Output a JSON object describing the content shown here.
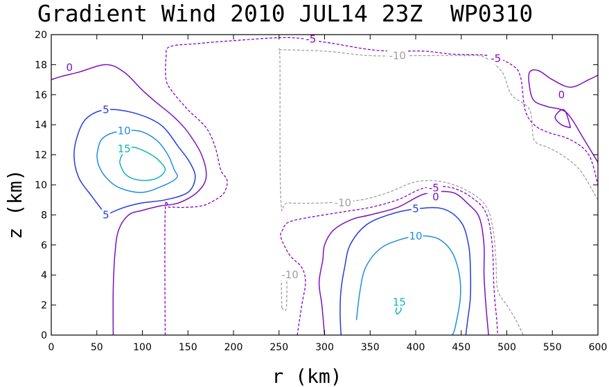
{
  "chart_data": {
    "type": "contour",
    "title": "Gradient Wind 2010 JUL14 23Z  WP0310",
    "xlabel": "r (km)",
    "ylabel": "z (km)",
    "xlim": [
      0,
      600
    ],
    "ylim": [
      0,
      20
    ],
    "x_ticks": [
      "0",
      "50",
      "100",
      "150",
      "200",
      "250",
      "300",
      "350",
      "400",
      "450",
      "500",
      "550",
      "600"
    ],
    "y_ticks": [
      "0",
      "2",
      "4",
      "6",
      "8",
      "10",
      "12",
      "14",
      "16",
      "18",
      "20"
    ],
    "grid": false,
    "level_colors": {
      "-10": "#a0a0a0",
      "-5": "#8a00c8",
      "0": "#7a10c0",
      "5": "#1e3ce0",
      "10": "#1e8ee0",
      "15": "#10b4b4"
    },
    "contours": [
      {
        "level": -10,
        "dashed": true,
        "points": [
          [
            250,
            19.0
          ],
          [
            251,
            18.0
          ],
          [
            252,
            9.0
          ],
          [
            260,
            8.8
          ],
          [
            300,
            8.8
          ],
          [
            340,
            9.0
          ],
          [
            370,
            9.5
          ],
          [
            400,
            10.2
          ],
          [
            430,
            10.2
          ],
          [
            460,
            9.5
          ],
          [
            478,
            8.5
          ],
          [
            485,
            7.0
          ],
          [
            488,
            5.0
          ],
          [
            490,
            3.0
          ],
          [
            500,
            2.0
          ],
          [
            510,
            1.0
          ],
          [
            518,
            0.0
          ]
        ]
      },
      {
        "level": -10,
        "dashed": true,
        "points": [
          [
            253,
            1.8
          ],
          [
            253,
            4.0
          ],
          [
            258,
            4.0
          ],
          [
            258,
            1.8
          ],
          [
            253,
            1.8
          ]
        ]
      },
      {
        "level": -10,
        "dashed": true,
        "points": [
          [
            250,
            19.0
          ],
          [
            300,
            18.9
          ],
          [
            350,
            18.6
          ],
          [
            400,
            18.6
          ],
          [
            450,
            18.6
          ],
          [
            475,
            18.5
          ],
          [
            495,
            17.5
          ],
          [
            505,
            16.0
          ],
          [
            525,
            15.0
          ],
          [
            530,
            13.0
          ],
          [
            545,
            12.5
          ],
          [
            560,
            12.0
          ],
          [
            580,
            11.0
          ],
          [
            600,
            9.0
          ]
        ]
      },
      {
        "level": -5,
        "dashed": true,
        "points": [
          [
            125,
            0.0
          ],
          [
            125,
            8.2
          ],
          [
            130,
            8.5
          ],
          [
            145,
            8.5
          ],
          [
            165,
            8.6
          ],
          [
            180,
            9.0
          ],
          [
            190,
            9.5
          ],
          [
            193,
            10.3
          ],
          [
            186,
            11.0
          ],
          [
            180,
            12.5
          ],
          [
            170,
            13.8
          ],
          [
            150,
            15.0
          ],
          [
            133,
            16.2
          ],
          [
            126,
            17.0
          ],
          [
            126,
            18.5
          ],
          [
            130,
            19.2
          ],
          [
            160,
            19.4
          ],
          [
            200,
            19.6
          ],
          [
            260,
            19.8
          ],
          [
            300,
            19.5
          ],
          [
            350,
            19.0
          ],
          [
            380,
            18.9
          ],
          [
            410,
            18.9
          ],
          [
            440,
            18.7
          ],
          [
            480,
            18.6
          ],
          [
            505,
            18.0
          ],
          [
            515,
            17.2
          ],
          [
            520,
            15.0
          ],
          [
            530,
            14.0
          ],
          [
            545,
            13.5
          ],
          [
            570,
            13.0
          ],
          [
            590,
            12.0
          ],
          [
            600,
            10.0
          ]
        ]
      },
      {
        "level": -5,
        "dashed": true,
        "points": [
          [
            270,
            0.0
          ],
          [
            275,
            2.0
          ],
          [
            279,
            3.5
          ],
          [
            275,
            4.5
          ],
          [
            262,
            5.3
          ],
          [
            252,
            6.5
          ],
          [
            254,
            7.0
          ],
          [
            260,
            7.5
          ],
          [
            280,
            7.8
          ],
          [
            320,
            8.2
          ],
          [
            350,
            8.5
          ],
          [
            380,
            9.0
          ],
          [
            410,
            9.8
          ],
          [
            440,
            9.8
          ],
          [
            465,
            9.0
          ],
          [
            478,
            8.0
          ],
          [
            484,
            6.0
          ],
          [
            486,
            3.0
          ],
          [
            489,
            1.0
          ],
          [
            490,
            0.0
          ]
        ]
      },
      {
        "level": 0,
        "dashed": false,
        "points": [
          [
            68,
            0.0
          ],
          [
            68,
            3.0
          ],
          [
            70,
            5.5
          ],
          [
            74,
            7.0
          ],
          [
            85,
            8.0
          ],
          [
            100,
            8.3
          ],
          [
            120,
            8.6
          ],
          [
            140,
            8.8
          ],
          [
            160,
            9.5
          ],
          [
            170,
            10.5
          ],
          [
            165,
            12.0
          ],
          [
            150,
            13.5
          ],
          [
            135,
            14.5
          ],
          [
            115,
            15.5
          ],
          [
            100,
            16.3
          ],
          [
            80,
            17.5
          ],
          [
            60,
            18.0
          ],
          [
            30,
            17.5
          ],
          [
            10,
            17.2
          ],
          [
            0,
            17.0
          ]
        ]
      },
      {
        "level": 0,
        "dashed": false,
        "points": [
          [
            300,
            0.0
          ],
          [
            297,
            2.0
          ],
          [
            294,
            3.5
          ],
          [
            298,
            5.0
          ],
          [
            300,
            6.0
          ],
          [
            310,
            7.0
          ],
          [
            330,
            7.7
          ],
          [
            350,
            8.0
          ],
          [
            380,
            8.5
          ],
          [
            410,
            9.4
          ],
          [
            440,
            9.5
          ],
          [
            458,
            8.7
          ],
          [
            470,
            7.8
          ],
          [
            475,
            6.0
          ],
          [
            475,
            4.0
          ],
          [
            477,
            2.0
          ],
          [
            480,
            0.0
          ]
        ]
      },
      {
        "level": 0,
        "dashed": false,
        "points": [
          [
            600,
            11.5
          ],
          [
            585,
            13.0
          ],
          [
            570,
            14.5
          ],
          [
            560,
            15.0
          ],
          [
            545,
            15.2
          ],
          [
            530,
            15.6
          ],
          [
            525,
            16.5
          ],
          [
            525,
            17.5
          ],
          [
            535,
            17.6
          ],
          [
            550,
            17.0
          ],
          [
            570,
            16.5
          ],
          [
            590,
            17.0
          ],
          [
            600,
            17.3
          ]
        ]
      },
      {
        "level": 0,
        "dashed": false,
        "points": [
          [
            570,
            13.8
          ],
          [
            560,
            14.0
          ],
          [
            553,
            14.5
          ],
          [
            560,
            15.0
          ],
          [
            565,
            14.8
          ],
          [
            570,
            13.8
          ]
        ]
      },
      {
        "level": 5,
        "dashed": false,
        "points": [
          [
            60,
            8.0
          ],
          [
            45,
            9.2
          ],
          [
            30,
            10.5
          ],
          [
            25,
            12.0
          ],
          [
            30,
            13.5
          ],
          [
            40,
            14.5
          ],
          [
            60,
            15.0
          ],
          [
            90,
            14.8
          ],
          [
            120,
            14.0
          ],
          [
            140,
            12.5
          ],
          [
            152,
            11.5
          ],
          [
            158,
            10.5
          ],
          [
            150,
            9.5
          ],
          [
            125,
            9.0
          ],
          [
            100,
            8.8
          ],
          [
            80,
            8.5
          ],
          [
            60,
            8.0
          ]
        ]
      },
      {
        "level": 5,
        "dashed": false,
        "points": [
          [
            318,
            0.0
          ],
          [
            317,
            1.5
          ],
          [
            318,
            3.0
          ],
          [
            322,
            4.5
          ],
          [
            328,
            6.0
          ],
          [
            345,
            7.3
          ],
          [
            370,
            8.0
          ],
          [
            400,
            8.4
          ],
          [
            430,
            8.4
          ],
          [
            450,
            7.5
          ],
          [
            458,
            6.0
          ],
          [
            460,
            4.5
          ],
          [
            460,
            2.5
          ],
          [
            457,
            1.0
          ],
          [
            455,
            0.0
          ]
        ]
      },
      {
        "level": 10,
        "dashed": false,
        "points": [
          [
            50,
            12.0
          ],
          [
            55,
            13.0
          ],
          [
            70,
            13.5
          ],
          [
            95,
            13.6
          ],
          [
            115,
            13.0
          ],
          [
            128,
            12.0
          ],
          [
            135,
            11.0
          ],
          [
            138,
            10.5
          ],
          [
            125,
            10.0
          ],
          [
            100,
            9.5
          ],
          [
            75,
            9.8
          ],
          [
            60,
            10.5
          ],
          [
            52,
            11.3
          ],
          [
            50,
            12.0
          ]
        ]
      },
      {
        "level": 10,
        "dashed": false,
        "points": [
          [
            335,
            1.0
          ],
          [
            339,
            3.0
          ],
          [
            345,
            4.5
          ],
          [
            360,
            5.7
          ],
          [
            380,
            6.3
          ],
          [
            405,
            6.6
          ],
          [
            425,
            6.4
          ],
          [
            440,
            5.5
          ],
          [
            448,
            4.0
          ],
          [
            449,
            2.5
          ],
          [
            445,
            1.0
          ],
          [
            440,
            0.0
          ],
          [
            430,
            0.0
          ]
        ]
      },
      {
        "level": 15,
        "dashed": false,
        "points": [
          [
            75,
            11.5
          ],
          [
            78,
            12.0
          ],
          [
            90,
            12.5
          ],
          [
            110,
            12.0
          ],
          [
            120,
            11.5
          ],
          [
            125,
            11.0
          ],
          [
            118,
            10.5
          ],
          [
            105,
            10.3
          ],
          [
            90,
            10.4
          ],
          [
            80,
            10.8
          ],
          [
            75,
            11.5
          ]
        ]
      },
      {
        "level": 15,
        "dashed": false,
        "points": [
          [
            378,
            1.6
          ],
          [
            381,
            2.0
          ],
          [
            384,
            1.7
          ],
          [
            380,
            1.4
          ],
          [
            378,
            1.6
          ]
        ]
      }
    ],
    "contour_labels": [
      {
        "level": 0,
        "text": "0",
        "x": 20,
        "y": 17.8
      },
      {
        "level": 5,
        "text": "5",
        "x": 60,
        "y": 15.0
      },
      {
        "level": 10,
        "text": "10",
        "x": 80,
        "y": 13.6
      },
      {
        "level": 15,
        "text": "15",
        "x": 80,
        "y": 12.4
      },
      {
        "level": 5,
        "text": "5",
        "x": 60,
        "y": 8.0
      },
      {
        "level": -5,
        "text": "-5",
        "x": 285,
        "y": 19.7
      },
      {
        "level": -10,
        "text": "-10",
        "x": 380,
        "y": 18.6
      },
      {
        "level": -5,
        "text": "-5",
        "x": 488,
        "y": 18.4
      },
      {
        "level": 0,
        "text": "0",
        "x": 560,
        "y": 16.0
      },
      {
        "level": -10,
        "text": "-10",
        "x": 320,
        "y": 8.8
      },
      {
        "level": -5,
        "text": "-5",
        "x": 420,
        "y": 9.8
      },
      {
        "level": 0,
        "text": "0",
        "x": 422,
        "y": 9.2
      },
      {
        "level": 5,
        "text": "5",
        "x": 400,
        "y": 8.4
      },
      {
        "level": 10,
        "text": "10",
        "x": 400,
        "y": 6.6
      },
      {
        "level": -10,
        "text": "-10",
        "x": 262,
        "y": 4.0
      },
      {
        "level": 15,
        "text": "15",
        "x": 382,
        "y": 2.2
      }
    ]
  }
}
